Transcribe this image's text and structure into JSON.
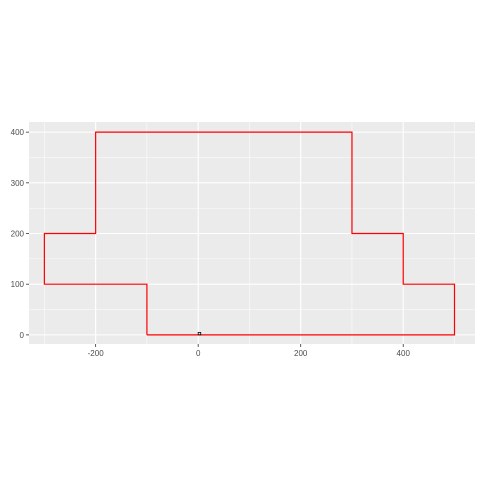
{
  "chart_data": {
    "type": "line",
    "title": "",
    "xlabel": "",
    "ylabel": "",
    "xlim": [
      -330,
      540
    ],
    "ylim": [
      -18,
      420
    ],
    "x_ticks": [
      -200,
      0,
      200,
      400
    ],
    "y_ticks": [
      0,
      100,
      200,
      300,
      400
    ],
    "x_tick_labels": [
      "-200",
      "0",
      "200",
      "400"
    ],
    "y_tick_labels": [
      "0",
      "100",
      "200",
      "300",
      "400"
    ],
    "grid": true,
    "legend": "none",
    "series": [
      {
        "color": "#ff0000",
        "closed": true,
        "x": [
          -100,
          500,
          500,
          400,
          400,
          300,
          300,
          -200,
          -200,
          -300,
          -300,
          -100,
          -100
        ],
        "y": [
          0,
          0,
          100,
          100,
          200,
          200,
          400,
          400,
          200,
          200,
          100,
          100,
          0
        ]
      },
      {
        "color": "#000000",
        "closed": true,
        "x": [
          0,
          5,
          5,
          0,
          0
        ],
        "y": [
          0,
          0,
          5,
          5,
          0
        ]
      }
    ]
  },
  "colors": {
    "panel_background": "#ebebeb",
    "grid_major": "#ffffff",
    "tick_text": "#4d4d4d",
    "tick_mark": "#333333"
  }
}
